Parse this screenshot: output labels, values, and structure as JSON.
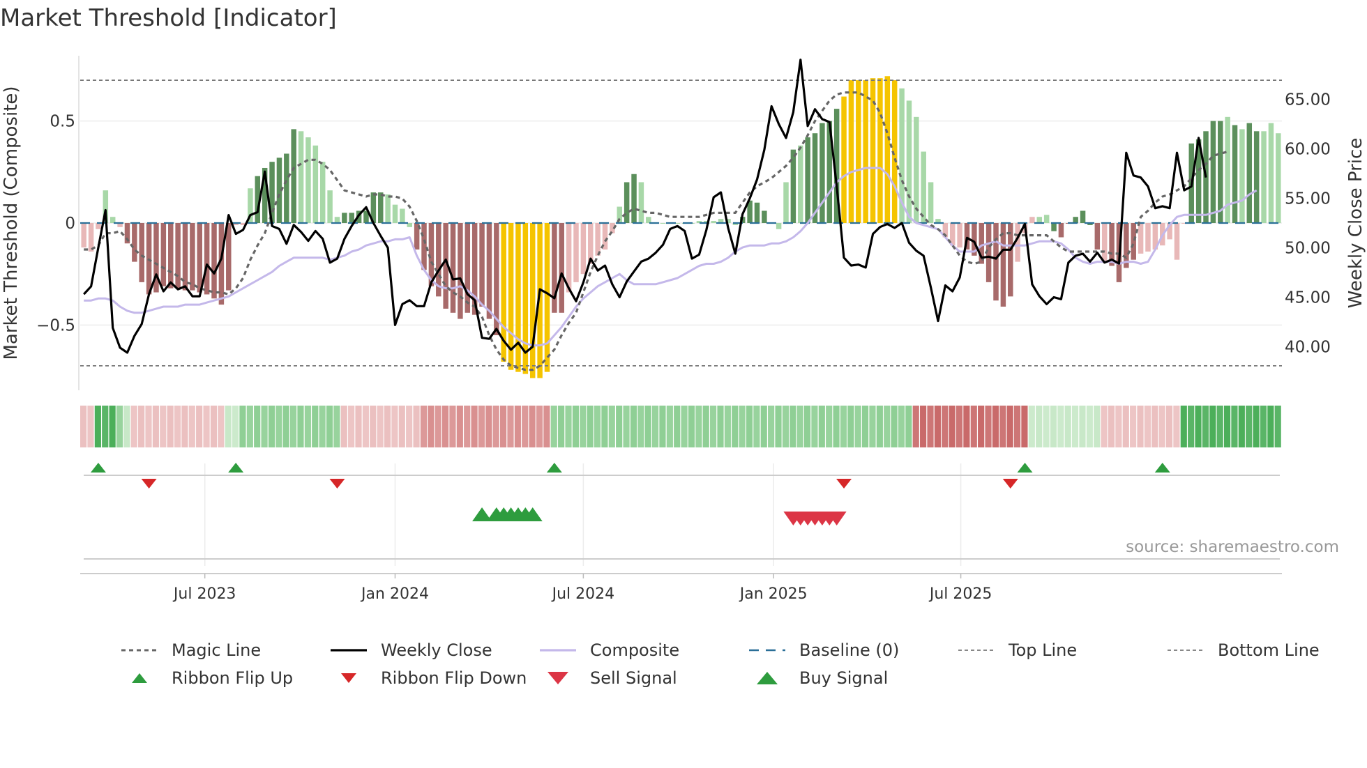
{
  "title": "Market Threshold [Indicator]",
  "watermark": "source: sharemaestro.com",
  "colors": {
    "strong_green": "#5b8f5b",
    "light_green": "#a8d8a8",
    "strong_red": "#a86a6a",
    "light_red": "#e8b8b8",
    "extreme": "#f5c400",
    "weekly_close": "#000000",
    "composite": "#c4b8ea",
    "magic": "#666666",
    "baseline": "#2a6f97",
    "flip_up": "#2e9c3e",
    "flip_down": "#d62728",
    "buy": "#2e9c3e",
    "sell": "#dc3545"
  },
  "chart_data": {
    "type": "bar+line",
    "title": "Market Threshold [Indicator]",
    "ylabel_left": "Market Threshold (Composite)",
    "ylabel_right": "Weekly Close Price",
    "left_ticks": [
      "0.5",
      "0",
      "−0.5"
    ],
    "left_tick_values": [
      0.5,
      0,
      -0.5
    ],
    "right_ticks": [
      "65.00",
      "60.00",
      "55.00",
      "50.00",
      "45.00",
      "40.00"
    ],
    "right_tick_values": [
      65,
      60,
      55,
      50,
      45,
      40
    ],
    "ylim_left": [
      -0.82,
      0.82
    ],
    "ylim_right": [
      35.6,
      69.4
    ],
    "top_line": 0.7,
    "bottom_line": -0.7,
    "baseline": 0,
    "x_start": "2023-03-06",
    "x_step_days": 7,
    "x_ticks": [
      "Jul 2023",
      "Jan 2024",
      "Jul 2024",
      "Jan 2025",
      "Jul 2025"
    ],
    "x_tick_dates": [
      "2023-07-01",
      "2024-01-01",
      "2024-07-01",
      "2025-01-01",
      "2025-07-01"
    ],
    "composite_bars": [
      -0.12,
      -0.14,
      -0.03,
      0.16,
      0.03,
      -0.02,
      -0.1,
      -0.19,
      -0.29,
      -0.35,
      -0.34,
      -0.31,
      -0.32,
      -0.32,
      -0.33,
      -0.33,
      -0.34,
      -0.35,
      -0.37,
      -0.4,
      -0.33,
      -0.01,
      -0.01,
      0.17,
      0.23,
      0.27,
      0.3,
      0.32,
      0.34,
      0.46,
      0.45,
      0.42,
      0.38,
      0.3,
      0.16,
      0.03,
      0.05,
      0.05,
      0.06,
      0.06,
      0.15,
      0.15,
      0.14,
      0.09,
      0.07,
      -0.02,
      -0.13,
      -0.23,
      -0.31,
      -0.36,
      -0.42,
      -0.44,
      -0.47,
      -0.44,
      -0.45,
      -0.41,
      -0.47,
      -0.55,
      -0.68,
      -0.72,
      -0.73,
      -0.74,
      -0.76,
      -0.76,
      -0.73,
      -0.44,
      -0.44,
      -0.34,
      -0.29,
      -0.25,
      -0.2,
      -0.16,
      -0.13,
      -0.05,
      0.08,
      0.2,
      0.24,
      0.2,
      0.03,
      0.0,
      0.0,
      0.0,
      0.0,
      0.0,
      0.0,
      0.01,
      0.01,
      0.01,
      0.02,
      0.02,
      -0.01,
      0.03,
      0.11,
      0.1,
      0.06,
      0.0,
      -0.03,
      0.2,
      0.36,
      0.38,
      0.42,
      0.44,
      0.49,
      0.5,
      0.56,
      0.62,
      0.7,
      0.7,
      0.7,
      0.71,
      0.71,
      0.72,
      0.7,
      0.66,
      0.6,
      0.52,
      0.35,
      0.2,
      0.02,
      -0.07,
      -0.11,
      -0.12,
      -0.13,
      -0.16,
      -0.2,
      -0.29,
      -0.38,
      -0.41,
      -0.36,
      -0.19,
      -0.05,
      0.03,
      0.03,
      0.04,
      -0.04,
      -0.07,
      0.0,
      0.03,
      0.06,
      -0.01,
      -0.13,
      -0.19,
      -0.21,
      -0.29,
      -0.22,
      -0.18,
      -0.15,
      -0.14,
      -0.13,
      -0.11,
      -0.08,
      -0.18,
      0.0,
      0.39,
      0.41,
      0.45,
      0.5,
      0.5,
      0.52,
      0.48,
      0.46,
      0.49,
      0.45,
      0.45,
      0.49,
      0.44
    ],
    "bar_style": [
      "r",
      "r",
      "r",
      "g",
      "g",
      "r",
      "R",
      "R",
      "R",
      "R",
      "R",
      "R",
      "R",
      "R",
      "R",
      "R",
      "R",
      "R",
      "R",
      "R",
      "R",
      "r",
      "r",
      "g",
      "G",
      "G",
      "G",
      "G",
      "G",
      "G",
      "g",
      "g",
      "g",
      "g",
      "g",
      "g",
      "G",
      "G",
      "G",
      "G",
      "G",
      "G",
      "g",
      "g",
      "g",
      "g",
      "R",
      "R",
      "R",
      "R",
      "R",
      "R",
      "R",
      "R",
      "R",
      "R",
      "R",
      "R",
      "Y",
      "Y",
      "Y",
      "Y",
      "Y",
      "Y",
      "Y",
      "R",
      "R",
      "r",
      "r",
      "r",
      "r",
      "r",
      "r",
      "r",
      "g",
      "G",
      "G",
      "g",
      "g",
      "g",
      "g",
      "g",
      "g",
      "g",
      "g",
      "g",
      "g",
      "g",
      "g",
      "g",
      "g",
      "G",
      "G",
      "G",
      "G",
      "g",
      "g",
      "g",
      "G",
      "g",
      "G",
      "G",
      "G",
      "G",
      "G",
      "Y",
      "Y",
      "Y",
      "Y",
      "Y",
      "Y",
      "Y",
      "Y",
      "g",
      "g",
      "g",
      "g",
      "g",
      "g",
      "r",
      "r",
      "r",
      "R",
      "R",
      "R",
      "R",
      "R",
      "R",
      "R",
      "r",
      "r",
      "r",
      "g",
      "g",
      "G",
      "R",
      "R",
      "G",
      "G",
      "G",
      "R",
      "r",
      "R",
      "R",
      "R",
      "R",
      "r",
      "r",
      "r",
      "r",
      "r",
      "r",
      "r",
      "G",
      "G",
      "G",
      "G",
      "G",
      "g",
      "G",
      "g",
      "G",
      "G",
      "g",
      "g",
      "g",
      "g"
    ],
    "weekly_close": [
      45.3,
      46.1,
      50,
      53.8,
      41.9,
      39.9,
      39.4,
      41.1,
      42.3,
      45.3,
      47.3,
      45.6,
      46.5,
      45.8,
      46.1,
      45.1,
      45.1,
      48.3,
      47.4,
      48.9,
      53.3,
      51.4,
      51.8,
      53.3,
      53.6,
      57.7,
      52.2,
      51.9,
      50.4,
      52.3,
      51.6,
      50.7,
      51.7,
      50.9,
      48.5,
      48.9,
      50.9,
      52.2,
      53.3,
      54.1,
      52.5,
      51.2,
      50,
      42.2,
      44.3,
      44.7,
      44.1,
      44.1,
      46.5,
      47.7,
      48.8,
      46.8,
      46.9,
      45.3,
      44.7,
      40.9,
      40.8,
      41.8,
      40.6,
      39.7,
      40.4,
      39.4,
      40,
      45.8,
      45.4,
      44.9,
      47.4,
      45.9,
      44.6,
      46.5,
      48.9,
      47.7,
      48.2,
      46.3,
      45,
      46.6,
      47.6,
      48.6,
      48.9,
      49.5,
      50.3,
      51.9,
      52.2,
      51.7,
      48.9,
      49.3,
      51.8,
      55.1,
      55.6,
      52,
      49.4,
      53.4,
      55,
      56.9,
      59.9,
      64.3,
      62.5,
      61.1,
      63.7,
      69,
      62.3,
      64,
      63,
      62.7,
      56.2,
      49,
      48.2,
      48.3,
      48,
      51.4,
      52.1,
      52.4,
      52,
      52.5,
      50.5,
      49.7,
      49.2,
      46,
      42.6,
      46.2,
      45.6,
      47,
      51,
      50.6,
      49,
      49.1,
      48.9,
      49.8,
      49.8,
      51,
      52.4,
      46.3,
      45.1,
      44.3,
      45,
      44.8,
      48.5,
      49.2,
      49.4,
      48.6,
      49.5,
      48.5,
      48.8,
      48.4,
      59.6,
      57.3,
      57.1,
      56.2,
      54,
      54.2,
      54,
      59.6,
      55.8,
      56.2,
      61.1,
      57.1
    ],
    "composite_line": [
      -0.38,
      -0.38,
      -0.37,
      -0.37,
      -0.38,
      -0.41,
      -0.43,
      -0.44,
      -0.44,
      -0.43,
      -0.42,
      -0.41,
      -0.41,
      -0.41,
      -0.4,
      -0.4,
      -0.4,
      -0.39,
      -0.38,
      -0.37,
      -0.36,
      -0.34,
      -0.32,
      -0.3,
      -0.28,
      -0.26,
      -0.24,
      -0.21,
      -0.19,
      -0.17,
      -0.17,
      -0.17,
      -0.17,
      -0.17,
      -0.18,
      -0.17,
      -0.16,
      -0.14,
      -0.13,
      -0.11,
      -0.1,
      -0.09,
      -0.09,
      -0.08,
      -0.08,
      -0.07,
      -0.16,
      -0.23,
      -0.28,
      -0.31,
      -0.32,
      -0.32,
      -0.31,
      -0.33,
      -0.36,
      -0.4,
      -0.43,
      -0.47,
      -0.51,
      -0.54,
      -0.57,
      -0.59,
      -0.6,
      -0.6,
      -0.59,
      -0.55,
      -0.51,
      -0.46,
      -0.41,
      -0.37,
      -0.34,
      -0.31,
      -0.29,
      -0.27,
      -0.25,
      -0.28,
      -0.3,
      -0.3,
      -0.3,
      -0.3,
      -0.29,
      -0.28,
      -0.27,
      -0.25,
      -0.23,
      -0.21,
      -0.2,
      -0.2,
      -0.19,
      -0.17,
      -0.14,
      -0.12,
      -0.11,
      -0.11,
      -0.11,
      -0.1,
      -0.1,
      -0.09,
      -0.07,
      -0.04,
      0.0,
      0.05,
      0.1,
      0.15,
      0.2,
      0.23,
      0.25,
      0.26,
      0.27,
      0.27,
      0.27,
      0.24,
      0.18,
      0.1,
      0.03,
      0.0,
      -0.01,
      -0.02,
      -0.03,
      -0.07,
      -0.11,
      -0.14,
      -0.14,
      -0.14,
      -0.11,
      -0.1,
      -0.09,
      -0.11,
      -0.11,
      -0.11,
      -0.11,
      -0.1,
      -0.09,
      -0.09,
      -0.09,
      -0.1,
      -0.13,
      -0.17,
      -0.19,
      -0.2,
      -0.19,
      -0.19,
      -0.19,
      -0.2,
      -0.19,
      -0.19,
      -0.2,
      -0.19,
      -0.13,
      -0.06,
      -0.01,
      0.03,
      0.04,
      0.04,
      0.04,
      0.04,
      0.05,
      0.06,
      0.09,
      0.1,
      0.11,
      0.14,
      0.16
    ],
    "magic_line": [
      -0.13,
      -0.13,
      -0.11,
      -0.05,
      -0.05,
      -0.04,
      -0.08,
      -0.13,
      -0.16,
      -0.18,
      -0.2,
      -0.22,
      -0.24,
      -0.26,
      -0.29,
      -0.3,
      -0.32,
      -0.33,
      -0.34,
      -0.34,
      -0.35,
      -0.32,
      -0.27,
      -0.18,
      -0.11,
      -0.05,
      0.05,
      0.14,
      0.21,
      0.27,
      0.29,
      0.31,
      0.31,
      0.29,
      0.26,
      0.21,
      0.16,
      0.15,
      0.14,
      0.13,
      0.14,
      0.14,
      0.13,
      0.13,
      0.12,
      0.08,
      0.01,
      -0.08,
      -0.19,
      -0.25,
      -0.31,
      -0.34,
      -0.36,
      -0.39,
      -0.41,
      -0.46,
      -0.55,
      -0.62,
      -0.67,
      -0.7,
      -0.71,
      -0.72,
      -0.72,
      -0.7,
      -0.66,
      -0.62,
      -0.55,
      -0.49,
      -0.44,
      -0.34,
      -0.24,
      -0.16,
      -0.09,
      -0.04,
      0.02,
      0.05,
      0.07,
      0.06,
      0.05,
      0.05,
      0.04,
      0.03,
      0.03,
      0.03,
      0.03,
      0.03,
      0.04,
      0.05,
      0.05,
      0.05,
      0.05,
      0.1,
      0.15,
      0.18,
      0.2,
      0.22,
      0.25,
      0.28,
      0.32,
      0.37,
      0.43,
      0.5,
      0.55,
      0.6,
      0.63,
      0.64,
      0.64,
      0.64,
      0.62,
      0.6,
      0.54,
      0.44,
      0.32,
      0.21,
      0.13,
      0.07,
      0.03,
      -0.01,
      -0.03,
      -0.06,
      -0.11,
      -0.16,
      -0.19,
      -0.2,
      -0.19,
      -0.12,
      -0.08,
      -0.05,
      -0.05,
      -0.06,
      -0.06,
      -0.06,
      -0.06,
      -0.06,
      -0.09,
      -0.12,
      -0.14,
      -0.14,
      -0.14,
      -0.14,
      -0.14,
      -0.14,
      -0.15,
      -0.15,
      -0.17,
      -0.1,
      0.03,
      0.06,
      0.1,
      0.13,
      0.14,
      0.16,
      0.18,
      0.22,
      0.26,
      0.29,
      0.33,
      0.34,
      0.35
    ],
    "ribbon": [
      -1,
      -1,
      3,
      3,
      3,
      2,
      1,
      -1,
      -1,
      -1,
      -1,
      -1,
      -1,
      -1,
      -1,
      -1,
      -1,
      -1,
      -1,
      -1,
      1,
      1,
      2,
      2,
      2,
      2,
      2,
      2,
      2,
      2,
      2,
      2,
      2,
      2,
      2,
      2,
      -1,
      -1,
      -1,
      -1,
      -1,
      -1,
      -1,
      -1,
      -1,
      -1,
      -1,
      -2,
      -2,
      -2,
      -2,
      -2,
      -2,
      -2,
      -2,
      -2,
      -2,
      -2,
      -2,
      -2,
      -2,
      -2,
      -2,
      -2,
      -2,
      2,
      2,
      2,
      2,
      2,
      2,
      2,
      2,
      2,
      2,
      2,
      2,
      2,
      2,
      2,
      2,
      2,
      2,
      2,
      2,
      2,
      2,
      2,
      2,
      2,
      2,
      2,
      2,
      2,
      2,
      2,
      2,
      2,
      2,
      2,
      2,
      2,
      2,
      2,
      2,
      2,
      2,
      2,
      2,
      2,
      2,
      2,
      2,
      2,
      2,
      -3,
      -3,
      -3,
      -3,
      -3,
      -3,
      -3,
      -3,
      -3,
      -3,
      -3,
      -3,
      -3,
      -3,
      -3,
      -3,
      1,
      1,
      1,
      1,
      1,
      1,
      1,
      1,
      1,
      1,
      -1,
      -1,
      -1,
      -1,
      -1,
      -1,
      -1,
      -1,
      -1,
      -1,
      -1,
      3,
      3,
      3,
      3,
      3,
      3,
      3,
      3,
      3,
      3,
      3,
      3,
      3,
      3
    ],
    "ribbon_flip_up_weeks": [
      2,
      21,
      65,
      130,
      149
    ],
    "ribbon_flip_down_weeks": [
      9,
      35,
      105,
      128
    ],
    "buy_signal_weeks": [
      55,
      57,
      58,
      59,
      60,
      61,
      62
    ],
    "sell_signal_weeks": [
      98,
      99,
      100,
      101,
      102,
      103,
      104
    ]
  },
  "legend": [
    {
      "label": "Magic Line",
      "symbol": "magic"
    },
    {
      "label": "Weekly Close",
      "symbol": "close"
    },
    {
      "label": "Composite",
      "symbol": "composite"
    },
    {
      "label": "Baseline (0)",
      "symbol": "baseline"
    },
    {
      "label": "Top Line",
      "symbol": "topline"
    },
    {
      "label": "Bottom Line",
      "symbol": "bottomline"
    },
    {
      "label": "Ribbon Flip Up",
      "symbol": "flip-up"
    },
    {
      "label": "Ribbon Flip Down",
      "symbol": "flip-down"
    },
    {
      "label": "Sell Signal",
      "symbol": "sell"
    },
    {
      "label": "Buy Signal",
      "symbol": "buy"
    }
  ]
}
